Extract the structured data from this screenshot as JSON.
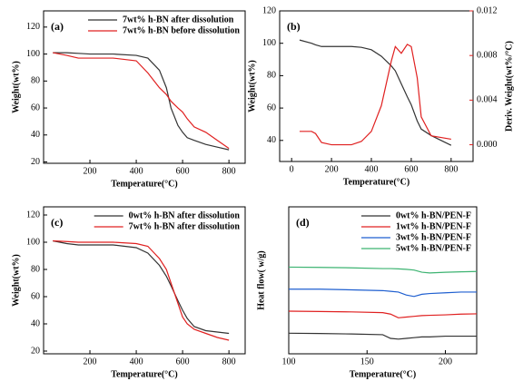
{
  "chart_data": [
    {
      "type": "line",
      "label": "(a)",
      "xlabel": "Temperature(°C)",
      "ylabel": "Weight(wt%)",
      "x": [
        40,
        100,
        150,
        200,
        300,
        400,
        450,
        500,
        530,
        550,
        580,
        600,
        620,
        650,
        700,
        750,
        800
      ],
      "series": [
        {
          "name": "7wt% h-BN after dissolution",
          "color": "#333333",
          "values": [
            101,
            101,
            100.5,
            100,
            100,
            99,
            97,
            88,
            75,
            60,
            47,
            42,
            38,
            36,
            33,
            31,
            29
          ]
        },
        {
          "name": "7wt% h-BN before dissolution",
          "color": "#e02020",
          "values": [
            101,
            99,
            97,
            97,
            97,
            95,
            86,
            75,
            70,
            65,
            60,
            57,
            52,
            46,
            42,
            36,
            30
          ]
        }
      ],
      "xlim": [
        0,
        870
      ],
      "ylim": [
        19,
        132
      ],
      "xticks": [
        200,
        400,
        600,
        800
      ],
      "yticks": [
        20,
        40,
        60,
        80,
        100,
        120
      ],
      "legend": "upper right"
    },
    {
      "type": "line",
      "label": "(b)",
      "xlabel": "Temperature(°C)",
      "ylabel": "Weight(wt%)",
      "y2label": "Deriv. Weight(wt%/°C)",
      "x": [
        40,
        100,
        120,
        150,
        200,
        300,
        350,
        400,
        450,
        500,
        520,
        550,
        580,
        600,
        630,
        650,
        700,
        800
      ],
      "series": [
        {
          "color": "#333333",
          "values": [
            102,
            100,
            99,
            98,
            98,
            98,
            97.5,
            96,
            92,
            86,
            83,
            75,
            67,
            62,
            52,
            47,
            43,
            37
          ]
        },
        {
          "color": "#e02020",
          "axis": "y2",
          "values": [
            0.0012,
            0.0012,
            0.001,
            0.0002,
            0,
            0,
            0.0003,
            0.0012,
            0.0035,
            0.0075,
            0.0088,
            0.0082,
            0.009,
            0.0088,
            0.006,
            0.0025,
            0.0008,
            0.0005
          ]
        }
      ],
      "xlim": [
        -60,
        910
      ],
      "ylim": [
        27,
        120
      ],
      "y2lim": [
        -0.0015,
        0.012
      ],
      "xticks": [
        0,
        200,
        400,
        600,
        800
      ],
      "yticks": [
        40,
        60,
        80,
        100,
        120
      ],
      "y2ticks": [
        {
          "value": 0,
          "label": "0.000"
        },
        {
          "value": 0.004,
          "label": "0.004"
        },
        {
          "value": 0.008,
          "label": "0.008"
        },
        {
          "value": 0.012,
          "label": "0.012"
        }
      ]
    },
    {
      "type": "line",
      "label": "(c)",
      "xlabel": "Temperature(°C)",
      "ylabel": "Weight(wt%)",
      "x": [
        40,
        100,
        150,
        200,
        300,
        400,
        450,
        500,
        530,
        550,
        580,
        600,
        620,
        650,
        700,
        750,
        800
      ],
      "series": [
        {
          "name": "0wt% h-BN after dissolution",
          "color": "#333333",
          "values": [
            101,
            99,
            98,
            98,
            98,
            96,
            92,
            83,
            75,
            68,
            57,
            50,
            44,
            38,
            35,
            34,
            33
          ]
        },
        {
          "name": "7wt% h-BN after dissolution",
          "color": "#e02020",
          "values": [
            101,
            100.5,
            100,
            100,
            100,
            99,
            97,
            88,
            80,
            70,
            55,
            45,
            40,
            36,
            33,
            30,
            28
          ]
        }
      ],
      "xlim": [
        0,
        870
      ],
      "ylim": [
        18,
        126
      ],
      "xticks": [
        200,
        400,
        600,
        800
      ],
      "yticks": [
        20,
        40,
        60,
        80,
        100,
        120
      ],
      "legend": "upper right"
    },
    {
      "type": "line",
      "label": "(d)",
      "xlabel": "Temperature(°C)",
      "ylabel": "Heat flow( w/g)",
      "x": [
        100,
        120,
        140,
        160,
        165,
        170,
        175,
        180,
        185,
        190,
        200,
        210,
        220
      ],
      "series": [
        {
          "name": "0wt% h-BN/PEN-F",
          "color": "#333333",
          "values": [
            1.4,
            1.38,
            1.35,
            1.3,
            1.05,
            1.0,
            1.05,
            1.1,
            1.15,
            1.15,
            1.2,
            1.2,
            1.2
          ]
        },
        {
          "name": "1wt% h-BN/PEN-F",
          "color": "#e02020",
          "values": [
            2.9,
            2.88,
            2.85,
            2.8,
            2.7,
            2.45,
            2.5,
            2.55,
            2.6,
            2.62,
            2.65,
            2.7,
            2.72
          ]
        },
        {
          "name": "3wt% h-BN/PEN-F",
          "color": "#1f5fd0",
          "values": [
            4.4,
            4.4,
            4.35,
            4.3,
            4.25,
            4.2,
            4.0,
            3.9,
            4.05,
            4.1,
            4.15,
            4.2,
            4.2
          ]
        },
        {
          "name": "5wt% h-BN/PEN-F",
          "color": "#3cb371",
          "values": [
            5.9,
            5.88,
            5.85,
            5.8,
            5.8,
            5.78,
            5.75,
            5.7,
            5.55,
            5.5,
            5.55,
            5.58,
            5.6
          ]
        }
      ],
      "xlim": [
        100,
        220
      ],
      "ylim": [
        0,
        10
      ],
      "xticks": [
        100,
        150,
        200
      ],
      "legend": "upper right"
    }
  ]
}
